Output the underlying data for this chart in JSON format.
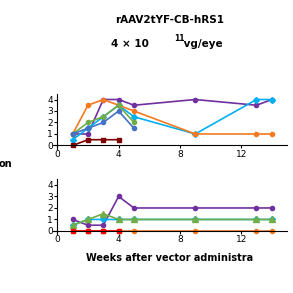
{
  "title_line1": "rAAV2tYF-CB-hRS1",
  "title_line2": "4 × 10",
  "title_exp": "11",
  "title_suffix": " vg/eye",
  "xlabel": "Weeks after vector administra",
  "ylabel_left": "on",
  "top_series": [
    {
      "x": [
        1,
        2,
        3,
        4,
        5,
        9,
        13,
        14
      ],
      "y": [
        1.0,
        1.0,
        4.0,
        4.0,
        3.5,
        4.0,
        3.5,
        4.0
      ],
      "color": "#7030a0",
      "marker": "o",
      "ms": 3,
      "lw": 1.2
    },
    {
      "x": [
        1,
        2,
        3,
        4,
        5,
        9,
        13,
        14
      ],
      "y": [
        0.5,
        1.5,
        2.5,
        3.5,
        2.5,
        1.0,
        4.0,
        4.0
      ],
      "color": "#00b0f0",
      "marker": "D",
      "ms": 3,
      "lw": 1.2
    },
    {
      "x": [
        1,
        2,
        3,
        4,
        5,
        9,
        13,
        14
      ],
      "y": [
        1.0,
        3.5,
        4.0,
        3.5,
        3.0,
        1.0,
        1.0,
        1.0
      ],
      "color": "#f47920",
      "marker": "o",
      "ms": 3,
      "lw": 1.2
    },
    {
      "x": [
        1,
        2,
        3,
        4,
        5
      ],
      "y": [
        1.0,
        2.0,
        2.5,
        3.5,
        2.0
      ],
      "color": "#70ad47",
      "marker": "o",
      "ms": 3,
      "lw": 1.2
    },
    {
      "x": [
        1,
        2,
        3,
        4,
        5
      ],
      "y": [
        1.0,
        1.5,
        2.0,
        3.0,
        1.5
      ],
      "color": "#4472c4",
      "marker": "o",
      "ms": 3,
      "lw": 1.2
    },
    {
      "x": [
        1,
        2,
        3,
        4
      ],
      "y": [
        0.0,
        0.5,
        0.5,
        0.5
      ],
      "color": "#7f0000",
      "marker": "s",
      "ms": 3,
      "lw": 1.2
    }
  ],
  "bottom_series": [
    {
      "x": [
        1,
        2,
        3,
        4,
        5,
        9,
        13,
        14
      ],
      "y": [
        1.0,
        0.5,
        0.5,
        3.0,
        2.0,
        2.0,
        2.0,
        2.0
      ],
      "color": "#7030a0",
      "marker": "o",
      "ms": 3,
      "lw": 1.2
    },
    {
      "x": [
        1,
        2,
        3,
        4,
        5,
        9,
        13,
        14
      ],
      "y": [
        0.5,
        1.0,
        1.0,
        1.0,
        1.0,
        1.0,
        1.0,
        1.0
      ],
      "color": "#00b0f0",
      "marker": "D",
      "ms": 3,
      "lw": 1.2
    },
    {
      "x": [
        1,
        2,
        3,
        4,
        5,
        9,
        13,
        14
      ],
      "y": [
        0.0,
        0.0,
        0.0,
        0.0,
        0.0,
        0.0,
        0.0,
        0.0
      ],
      "color": "#f47920",
      "marker": "o",
      "ms": 3,
      "lw": 1.2
    },
    {
      "x": [
        1,
        2,
        3,
        4,
        5,
        9,
        13,
        14
      ],
      "y": [
        0.5,
        1.0,
        1.5,
        1.0,
        1.0,
        1.0,
        1.0,
        1.0
      ],
      "color": "#70ad47",
      "marker": "^",
      "ms": 4,
      "lw": 1.2
    },
    {
      "x": [
        1,
        2,
        3,
        4
      ],
      "y": [
        0.0,
        0.0,
        0.0,
        0.0
      ],
      "color": "#ff0000",
      "marker": "s",
      "ms": 3,
      "lw": 1.2
    }
  ],
  "ylim": [
    -0.3,
    4.5
  ],
  "yticks": [
    0,
    1,
    2,
    3,
    4
  ],
  "xlim": [
    -0.3,
    15
  ],
  "xticks": [
    0,
    4,
    8,
    12
  ],
  "background_color": "#ffffff",
  "tick_fontsize": 6.5
}
